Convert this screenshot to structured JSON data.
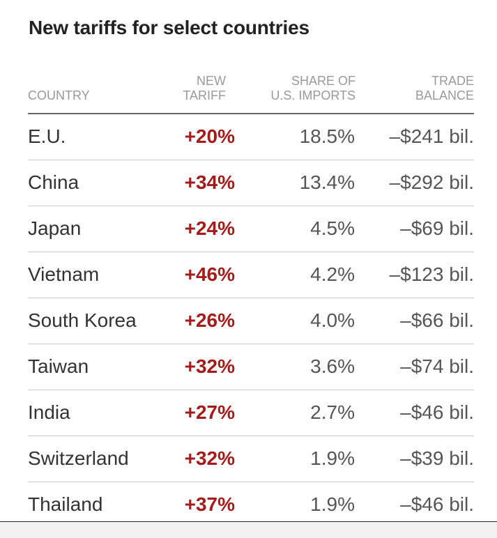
{
  "title": "New tariffs for select countries",
  "chart_data": {
    "type": "table",
    "title": "New tariffs for select countries",
    "columns": [
      "COUNTRY",
      "NEW\nTARIFF",
      "SHARE OF\nU.S. IMPORTS",
      "TRADE\nBALANCE"
    ],
    "rows": [
      {
        "country": "E.U.",
        "tariff": "+20%",
        "share": "18.5%",
        "balance": "–$241 bil."
      },
      {
        "country": "China",
        "tariff": "+34%",
        "share": "13.4%",
        "balance": "–$292 bil."
      },
      {
        "country": "Japan",
        "tariff": "+24%",
        "share": "4.5%",
        "balance": "–$69 bil."
      },
      {
        "country": "Vietnam",
        "tariff": "+46%",
        "share": "4.2%",
        "balance": "–$123 bil."
      },
      {
        "country": "South Korea",
        "tariff": "+26%",
        "share": "4.0%",
        "balance": "–$66 bil."
      },
      {
        "country": "Taiwan",
        "tariff": "+32%",
        "share": "3.6%",
        "balance": "–$74 bil."
      },
      {
        "country": "India",
        "tariff": "+27%",
        "share": "2.7%",
        "balance": "–$46 bil."
      },
      {
        "country": "Switzerland",
        "tariff": "+32%",
        "share": "1.9%",
        "balance": "–$39 bil."
      },
      {
        "country": "Thailand",
        "tariff": "+37%",
        "share": "1.9%",
        "balance": "–$46 bil."
      }
    ],
    "values": {
      "tariff_pct": [
        20,
        34,
        24,
        46,
        26,
        32,
        27,
        32,
        37
      ],
      "import_share_pct": [
        18.5,
        13.4,
        4.5,
        4.2,
        4.0,
        3.6,
        2.7,
        1.9,
        1.9
      ],
      "trade_balance_bil_usd": [
        -241,
        -292,
        -69,
        -123,
        -66,
        -74,
        -46,
        -39,
        -46
      ]
    }
  },
  "colors": {
    "tariff": "#a31b1b",
    "header": "#999999",
    "text": "#333333",
    "rule": "#cccccc"
  }
}
